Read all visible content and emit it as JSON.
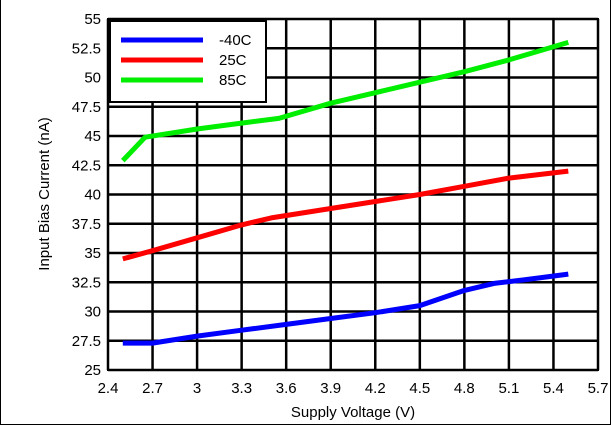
{
  "chart_data": {
    "type": "line",
    "title": "",
    "xlabel": "Supply Voltage (V)",
    "ylabel": "Input Bias Current (nA)",
    "xlim": [
      2.4,
      5.7
    ],
    "ylim": [
      25,
      55
    ],
    "xticks": [
      "2.4",
      "2.7",
      "3",
      "3.3",
      "3.6",
      "3.9",
      "4.2",
      "4.5",
      "4.8",
      "5.1",
      "5.4",
      "5.7"
    ],
    "yticks": [
      "25",
      "27.5",
      "30",
      "32.5",
      "35",
      "37.5",
      "40",
      "42.5",
      "45",
      "47.5",
      "50",
      "52.5",
      "55"
    ],
    "grid": true,
    "legend_position": "top-left",
    "series": [
      {
        "name": "-40C",
        "color": "#0000ff",
        "x": [
          2.5,
          2.7,
          3.0,
          3.3,
          3.6,
          3.9,
          4.2,
          4.5,
          4.8,
          5.0,
          5.2,
          5.5
        ],
        "y": [
          27.3,
          27.3,
          27.9,
          28.4,
          28.9,
          29.4,
          29.9,
          30.5,
          31.8,
          32.4,
          32.7,
          33.2
        ]
      },
      {
        "name": "25C",
        "color": "#ff0000",
        "x": [
          2.5,
          2.7,
          3.0,
          3.3,
          3.5,
          3.9,
          4.2,
          4.5,
          4.8,
          5.1,
          5.5
        ],
        "y": [
          34.5,
          35.2,
          36.3,
          37.4,
          38.0,
          38.8,
          39.4,
          40.0,
          40.7,
          41.4,
          42.0
        ]
      },
      {
        "name": "85C",
        "color": "#00ee00",
        "x": [
          2.5,
          2.65,
          3.0,
          3.3,
          3.55,
          3.9,
          4.2,
          4.5,
          4.8,
          5.1,
          5.5
        ],
        "y": [
          42.9,
          44.9,
          45.6,
          46.1,
          46.5,
          47.8,
          48.7,
          49.6,
          50.5,
          51.5,
          53.0
        ]
      }
    ]
  }
}
